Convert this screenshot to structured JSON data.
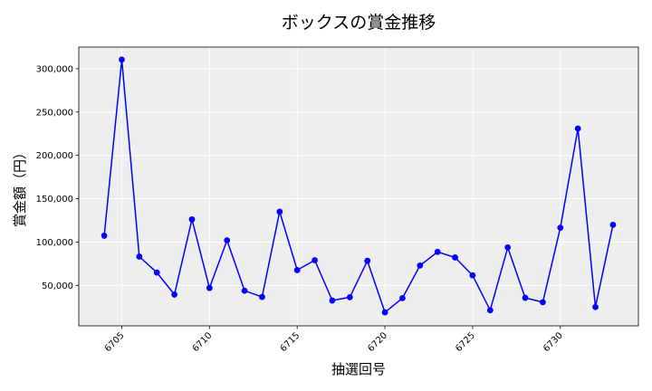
{
  "chart_data": {
    "type": "line",
    "title": "ボックスの賞金推移",
    "xlabel": "抽選回号",
    "ylabel": "賞金額（円）",
    "x": [
      6704,
      6705,
      6706,
      6707,
      6708,
      6709,
      6710,
      6711,
      6712,
      6713,
      6714,
      6715,
      6716,
      6717,
      6718,
      6719,
      6720,
      6721,
      6722,
      6723,
      6724,
      6725,
      6726,
      6727,
      6728,
      6729,
      6730,
      6731,
      6732,
      6733
    ],
    "series": [
      {
        "values": [
          107300,
          310500,
          83200,
          64800,
          39400,
          126100,
          47000,
          102000,
          43800,
          36600,
          135000,
          67600,
          79000,
          32500,
          36300,
          78300,
          18900,
          35300,
          72900,
          88600,
          82200,
          61500,
          21300,
          93800,
          35600,
          30600,
          116500,
          231000,
          25000,
          119900
        ],
        "color": "#0000ff"
      }
    ],
    "xlim": [
      6702.55,
      6734.45
    ],
    "ylim": [
      3300,
      325000
    ],
    "x_ticks": [
      "6705",
      "6710",
      "6715",
      "6720",
      "6725",
      "6730"
    ],
    "y_ticks": [
      "50,000",
      "100,000",
      "150,000",
      "200,000",
      "250,000",
      "300,000"
    ],
    "grid": true,
    "background_color": "#eeeeee"
  }
}
